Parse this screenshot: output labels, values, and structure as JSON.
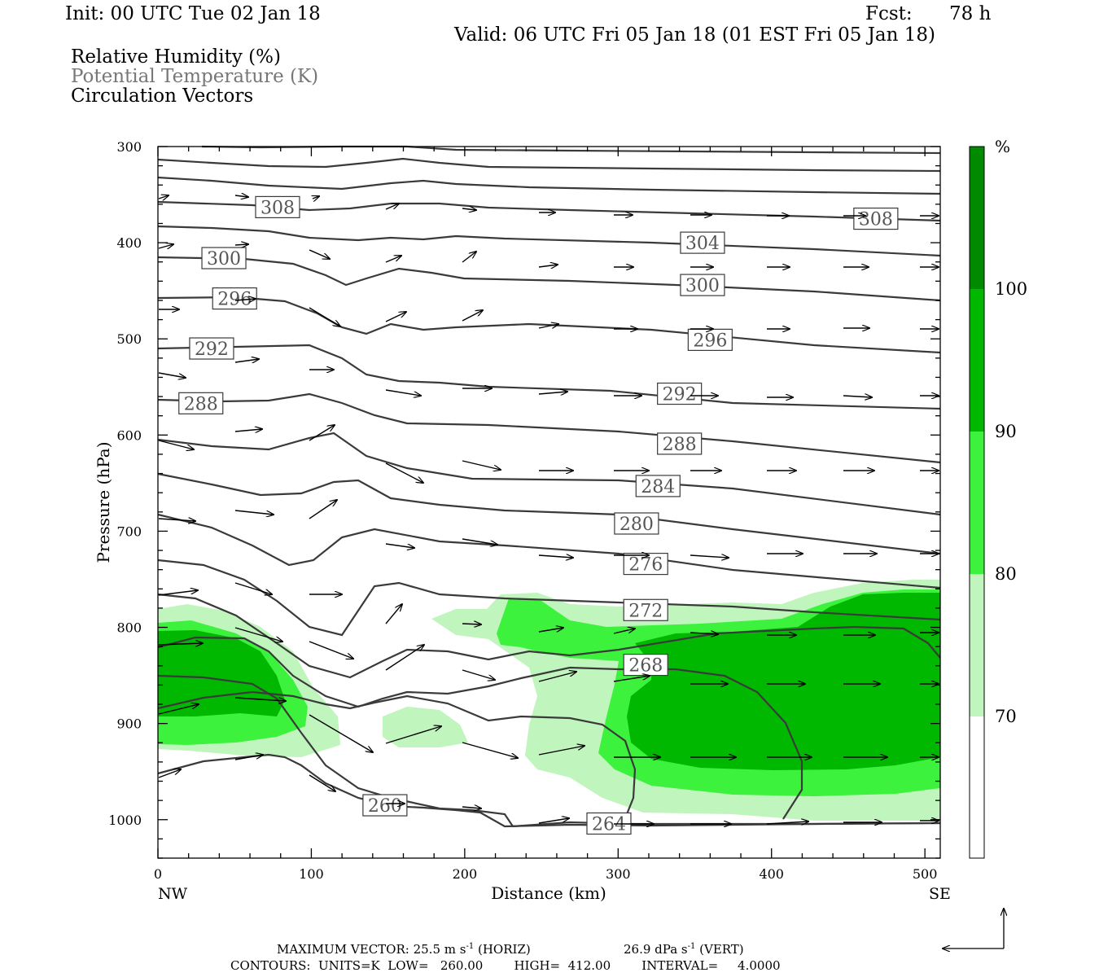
{
  "header": {
    "init": "Init: 00 UTC Tue 02 Jan 18",
    "fcst_label": "Fcst:",
    "fcst_value": "78 h",
    "valid": "Valid: 06 UTC Fri 05 Jan 18 (01 EST Fri 05 Jan 18)"
  },
  "fields": {
    "rh": "Relative Humidity (%)",
    "theta": "Potential Temperature (K)",
    "vectors": "Circulation Vectors"
  },
  "colors": {
    "rh_70_80": "#c0f5bd",
    "rh_80_90": "#3df23d",
    "rh_90_100": "#00b800",
    "rh_100": "#008a00",
    "contour": "#3a3a3a",
    "vector": "#000000"
  },
  "chart_data": {
    "type": "cross-section",
    "xlabel": "Distance (km)",
    "ylabel": "Pressure (hPa)",
    "xlim": [
      0,
      510
    ],
    "ylim": [
      1040,
      300
    ],
    "x_ticks": [
      "0",
      "100",
      "200",
      "300",
      "400",
      "500"
    ],
    "y_ticks": [
      "300",
      "400",
      "500",
      "600",
      "700",
      "800",
      "900",
      "1000"
    ],
    "x_end_labels": {
      "left": "NW",
      "right": "SE"
    },
    "colorbar": {
      "unit": "%",
      "levels": [
        "70",
        "80",
        "90",
        "100"
      ]
    },
    "theta_contour_labels": [
      {
        "value": "308",
        "x": 78,
        "p": 363
      },
      {
        "value": "308",
        "x": 468,
        "p": 375
      },
      {
        "value": "304",
        "x": 355,
        "p": 400
      },
      {
        "value": "300",
        "x": 43,
        "p": 416
      },
      {
        "value": "300",
        "x": 355,
        "p": 444
      },
      {
        "value": "296",
        "x": 50,
        "p": 458
      },
      {
        "value": "296",
        "x": 360,
        "p": 501
      },
      {
        "value": "292",
        "x": 35,
        "p": 510
      },
      {
        "value": "292",
        "x": 340,
        "p": 557
      },
      {
        "value": "288",
        "x": 28,
        "p": 567
      },
      {
        "value": "288",
        "x": 340,
        "p": 609
      },
      {
        "value": "284",
        "x": 326,
        "p": 653
      },
      {
        "value": "280",
        "x": 312,
        "p": 692
      },
      {
        "value": "276",
        "x": 318,
        "p": 734
      },
      {
        "value": "272",
        "x": 318,
        "p": 782
      },
      {
        "value": "268",
        "x": 318,
        "p": 839
      },
      {
        "value": "260",
        "x": 148,
        "p": 985
      },
      {
        "value": "264",
        "x": 294,
        "p": 1004
      }
    ],
    "vector_reference": {
      "max_horiz": "MAXIMUM VECTOR:  25.5 m s",
      "max_horiz_unit": "(HORIZ)",
      "max_vert": "26.9 dPa s",
      "max_vert_unit": "(VERT)",
      "exponent": "-1"
    },
    "contour_info": "CONTOURS:  UNITS=K  LOW=   260.00        HIGH=  412.00        INTERVAL=     4.0000"
  }
}
